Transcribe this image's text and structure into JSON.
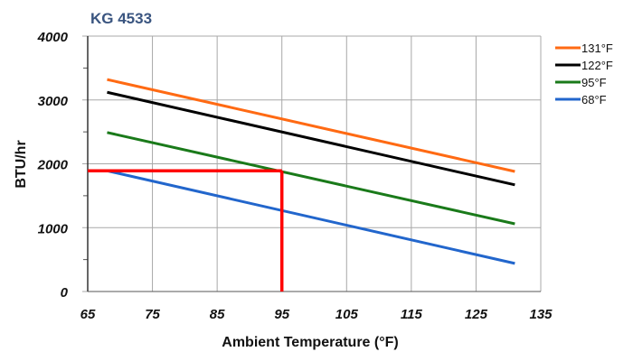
{
  "chart_data": {
    "type": "line",
    "title": "KG 4533",
    "xlabel": "Ambient Temperature (°F)",
    "ylabel": "BTU/hr",
    "xlim": [
      65,
      135
    ],
    "ylim": [
      0,
      4000
    ],
    "xticks": [
      "65",
      "75",
      "85",
      "95",
      "105",
      "115",
      "125",
      "135"
    ],
    "yticks": [
      "0",
      "1000",
      "2000",
      "3000",
      "4000"
    ],
    "grid": true,
    "legend_position": "right",
    "series": [
      {
        "name": "131°F",
        "color": "#ff6a13",
        "x": [
          68,
          131
        ],
        "y": [
          3320,
          1880
        ]
      },
      {
        "name": "122°F",
        "color": "#000000",
        "x": [
          68,
          131
        ],
        "y": [
          3120,
          1670
        ]
      },
      {
        "name": "95°F",
        "color": "#1a7a1a",
        "x": [
          68,
          131
        ],
        "y": [
          2490,
          1060
        ]
      },
      {
        "name": "68°F",
        "color": "#2266cc",
        "x": [
          68,
          131
        ],
        "y": [
          1890,
          440
        ]
      }
    ],
    "annotation": {
      "color": "#ff0000",
      "x": 95,
      "y": 1890
    }
  }
}
